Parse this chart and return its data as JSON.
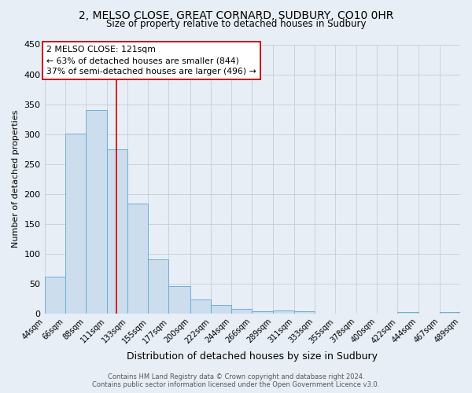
{
  "title1": "2, MELSO CLOSE, GREAT CORNARD, SUDBURY, CO10 0HR",
  "title2": "Size of property relative to detached houses in Sudbury",
  "xlabel": "Distribution of detached houses by size in Sudbury",
  "ylabel": "Number of detached properties",
  "bar_color": "#ccdded",
  "bar_edgecolor": "#6aafd6",
  "bar_linewidth": 0.7,
  "vline_x": 121,
  "vline_color": "#cc0000",
  "annotation_line1": "2 MELSO CLOSE: 121sqm",
  "annotation_line2": "← 63% of detached houses are smaller (844)",
  "annotation_line3": "37% of semi-detached houses are larger (496) →",
  "annotation_box_edgecolor": "#cc0000",
  "annotation_box_facecolor": "white",
  "footer_text": "Contains HM Land Registry data © Crown copyright and database right 2024.\nContains public sector information licensed under the Open Government Licence v3.0.",
  "background_color": "#e8eef5",
  "plot_bg_color": "#e8eef5",
  "bins": [
    44,
    66,
    88,
    111,
    133,
    155,
    177,
    200,
    222,
    244,
    266,
    289,
    311,
    333,
    355,
    378,
    400,
    422,
    444,
    467,
    489
  ],
  "bin_labels": [
    "44sqm",
    "66sqm",
    "88sqm",
    "111sqm",
    "133sqm",
    "155sqm",
    "177sqm",
    "200sqm",
    "222sqm",
    "244sqm",
    "266sqm",
    "289sqm",
    "311sqm",
    "333sqm",
    "355sqm",
    "378sqm",
    "400sqm",
    "422sqm",
    "444sqm",
    "467sqm",
    "489sqm"
  ],
  "counts": [
    62,
    301,
    340,
    275,
    184,
    90,
    46,
    23,
    14,
    7,
    4,
    5,
    4,
    0,
    0,
    0,
    0,
    3,
    0,
    3
  ],
  "ylim": [
    0,
    450
  ],
  "yticks": [
    0,
    50,
    100,
    150,
    200,
    250,
    300,
    350,
    400,
    450
  ]
}
